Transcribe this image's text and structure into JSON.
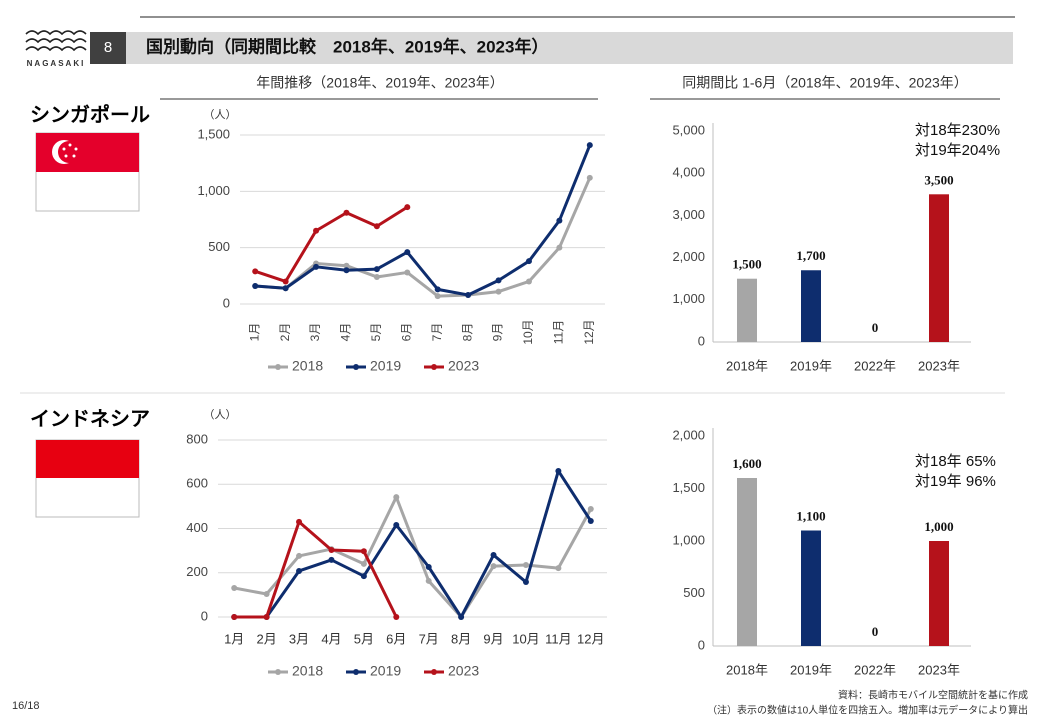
{
  "header": {
    "logo": "NAGASAKI",
    "number": "8",
    "title": "国別動向（同期間比較　2018年、2019年、2023年）"
  },
  "section_titles": [
    "年間推移（2018年、2019年、2023年）",
    "同期間比 1-6月（2018年、2019年、2023年）"
  ],
  "countries": [
    "シンガポール",
    "インドネシア"
  ],
  "chart_data": [
    {
      "type": "line",
      "y_label": "（人）",
      "categories": [
        "1月",
        "2月",
        "3月",
        "4月",
        "5月",
        "6月",
        "7月",
        "8月",
        "9月",
        "10月",
        "11月",
        "12月"
      ],
      "ylim": [
        0,
        1500
      ],
      "yticks": [
        0,
        500,
        {
          "value": 1000,
          "label": "1,000"
        },
        {
          "value": 1500,
          "label": "1,500"
        }
      ],
      "grid": true,
      "legend": "bottom",
      "series": [
        {
          "name": "2018",
          "color": "#a6a6a6",
          "values": [
            160,
            140,
            360,
            340,
            240,
            280,
            70,
            80,
            110,
            200,
            500,
            1120
          ]
        },
        {
          "name": "2019",
          "color": "#0e2d6e",
          "values": [
            160,
            140,
            330,
            300,
            310,
            460,
            130,
            80,
            210,
            380,
            740,
            1410
          ]
        },
        {
          "name": "2023",
          "color": "#b5121b",
          "values": [
            290,
            200,
            650,
            810,
            690,
            860,
            null,
            null,
            null,
            null,
            null,
            null
          ]
        }
      ]
    },
    {
      "type": "bar",
      "categories": [
        "2018年",
        "2019年",
        "2022年",
        "2023年"
      ],
      "values": [
        1500,
        1700,
        0,
        3500
      ],
      "value_labels": [
        "1,500",
        "1,700",
        "0",
        "3,500"
      ],
      "colors": [
        "#a6a6a6",
        "#0e2d6e",
        "#b5121b",
        "#b5121b"
      ],
      "ylim": [
        0,
        5000
      ],
      "yticks": [
        0,
        {
          "value": 1000,
          "label": "1,000"
        },
        {
          "value": 2000,
          "label": "2,000"
        },
        {
          "value": 3000,
          "label": "3,000"
        },
        {
          "value": 4000,
          "label": "4,000"
        },
        {
          "value": 5000,
          "label": "5,000"
        }
      ],
      "annotations": [
        "対18年230%",
        "対19年204%"
      ]
    },
    {
      "type": "line",
      "y_label": "（人）",
      "categories": [
        "1月",
        "2月",
        "3月",
        "4月",
        "5月",
        "6月",
        "7月",
        "8月",
        "9月",
        "10月",
        "11月",
        "12月"
      ],
      "ylim": [
        0,
        800
      ],
      "yticks": [
        0,
        200,
        400,
        600,
        800
      ],
      "grid": true,
      "legend": "bottom",
      "series": [
        {
          "name": "2018",
          "color": "#a6a6a6",
          "values": [
            131,
            104,
            276,
            307,
            240,
            542,
            163,
            0,
            230,
            235,
            221,
            488
          ]
        },
        {
          "name": "2019",
          "color": "#0e2d6e",
          "values": [
            0,
            0,
            208,
            258,
            185,
            416,
            226,
            0,
            280,
            158,
            660,
            434
          ]
        },
        {
          "name": "2023",
          "color": "#b5121b",
          "values": [
            0,
            0,
            430,
            303,
            297,
            0,
            null,
            null,
            null,
            null,
            null,
            null
          ]
        }
      ]
    },
    {
      "type": "bar",
      "categories": [
        "2018年",
        "2019年",
        "2022年",
        "2023年"
      ],
      "values": [
        1600,
        1100,
        0,
        1000
      ],
      "value_labels": [
        "1,600",
        "1,100",
        "0",
        "1,000"
      ],
      "colors": [
        "#a6a6a6",
        "#0e2d6e",
        "#b5121b",
        "#b5121b"
      ],
      "ylim": [
        0,
        2000
      ],
      "yticks": [
        0,
        500,
        {
          "value": 1000,
          "label": "1,000"
        },
        {
          "value": 1500,
          "label": "1,500"
        },
        {
          "value": 2000,
          "label": "2,000"
        }
      ],
      "annotations": [
        "対18年 65%",
        "対19年 96%"
      ]
    }
  ],
  "page": "16/18",
  "footnotes": [
    "資料：長崎市モバイル空間統計を基に作成",
    "（注）表示の数値は10人単位を四捨五入。増加率は元データにより算出"
  ]
}
